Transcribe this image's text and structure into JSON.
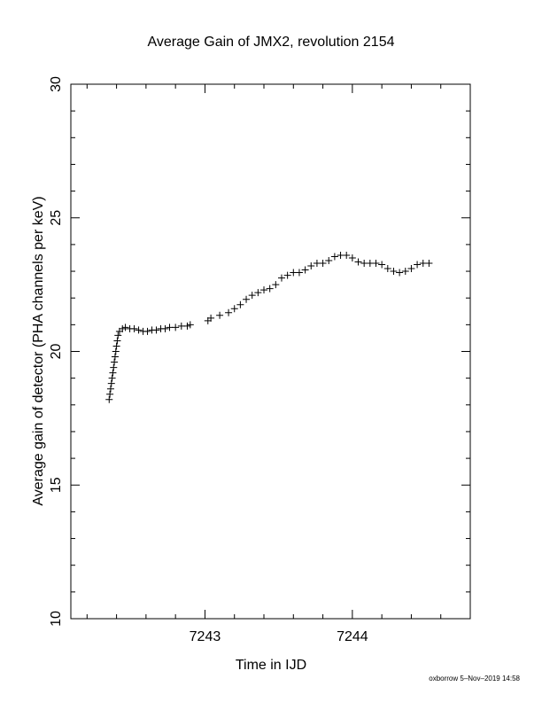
{
  "chart_data": {
    "type": "scatter",
    "title": "Average Gain of JMX2, revolution 2154",
    "xlabel": "Time in IJD",
    "ylabel": "Average gain of detector (PHA channels per keV)",
    "footer": "oxborrow  5–Nov–2019 14:58",
    "marker": "+",
    "color": "#000000",
    "xlim": [
      7242.09,
      7244.8
    ],
    "ylim": [
      10,
      30
    ],
    "xticks": [
      7243,
      7244
    ],
    "yticks": [
      10,
      15,
      20,
      25,
      30
    ],
    "xminorticks": [
      7242.2,
      7242.4,
      7242.6,
      7242.8,
      7243.2,
      7243.4,
      7243.6,
      7243.8,
      7244.2,
      7244.4,
      7244.6
    ],
    "yminorticks": [
      11,
      12,
      13,
      14,
      16,
      17,
      18,
      19,
      21,
      22,
      23,
      24,
      26,
      27,
      28,
      29
    ],
    "x": [
      7242.35,
      7242.355,
      7242.36,
      7242.365,
      7242.37,
      7242.375,
      7242.38,
      7242.385,
      7242.39,
      7242.395,
      7242.4,
      7242.405,
      7242.41,
      7242.42,
      7242.44,
      7242.46,
      7242.49,
      7242.52,
      7242.55,
      7242.58,
      7242.61,
      7242.64,
      7242.67,
      7242.7,
      7242.73,
      7242.76,
      7242.8,
      7242.84,
      7242.88,
      7242.9,
      7243.02,
      7243.04,
      7243.1,
      7243.16,
      7243.2,
      7243.24,
      7243.28,
      7243.32,
      7243.36,
      7243.4,
      7243.44,
      7243.48,
      7243.52,
      7243.56,
      7243.6,
      7243.64,
      7243.68,
      7243.72,
      7243.76,
      7243.8,
      7243.84,
      7243.88,
      7243.92,
      7243.96,
      7244.0,
      7244.04,
      7244.08,
      7244.12,
      7244.16,
      7244.2,
      7244.24,
      7244.28,
      7244.32,
      7244.36,
      7244.4,
      7244.44,
      7244.48,
      7244.52
    ],
    "values": [
      18.2,
      18.4,
      18.6,
      18.8,
      19.0,
      19.2,
      19.4,
      19.6,
      19.8,
      20.0,
      20.2,
      20.4,
      20.6,
      20.75,
      20.85,
      20.9,
      20.85,
      20.85,
      20.8,
      20.75,
      20.75,
      20.8,
      20.8,
      20.85,
      20.85,
      20.9,
      20.9,
      20.95,
      20.95,
      21.0,
      21.15,
      21.25,
      21.35,
      21.45,
      21.6,
      21.75,
      21.95,
      22.1,
      22.2,
      22.3,
      22.35,
      22.5,
      22.75,
      22.85,
      22.95,
      22.95,
      23.05,
      23.2,
      23.3,
      23.3,
      23.4,
      23.55,
      23.6,
      23.6,
      23.5,
      23.35,
      23.3,
      23.3,
      23.3,
      23.25,
      23.1,
      23.0,
      22.95,
      23.0,
      23.1,
      23.25,
      23.3,
      23.3
    ]
  }
}
